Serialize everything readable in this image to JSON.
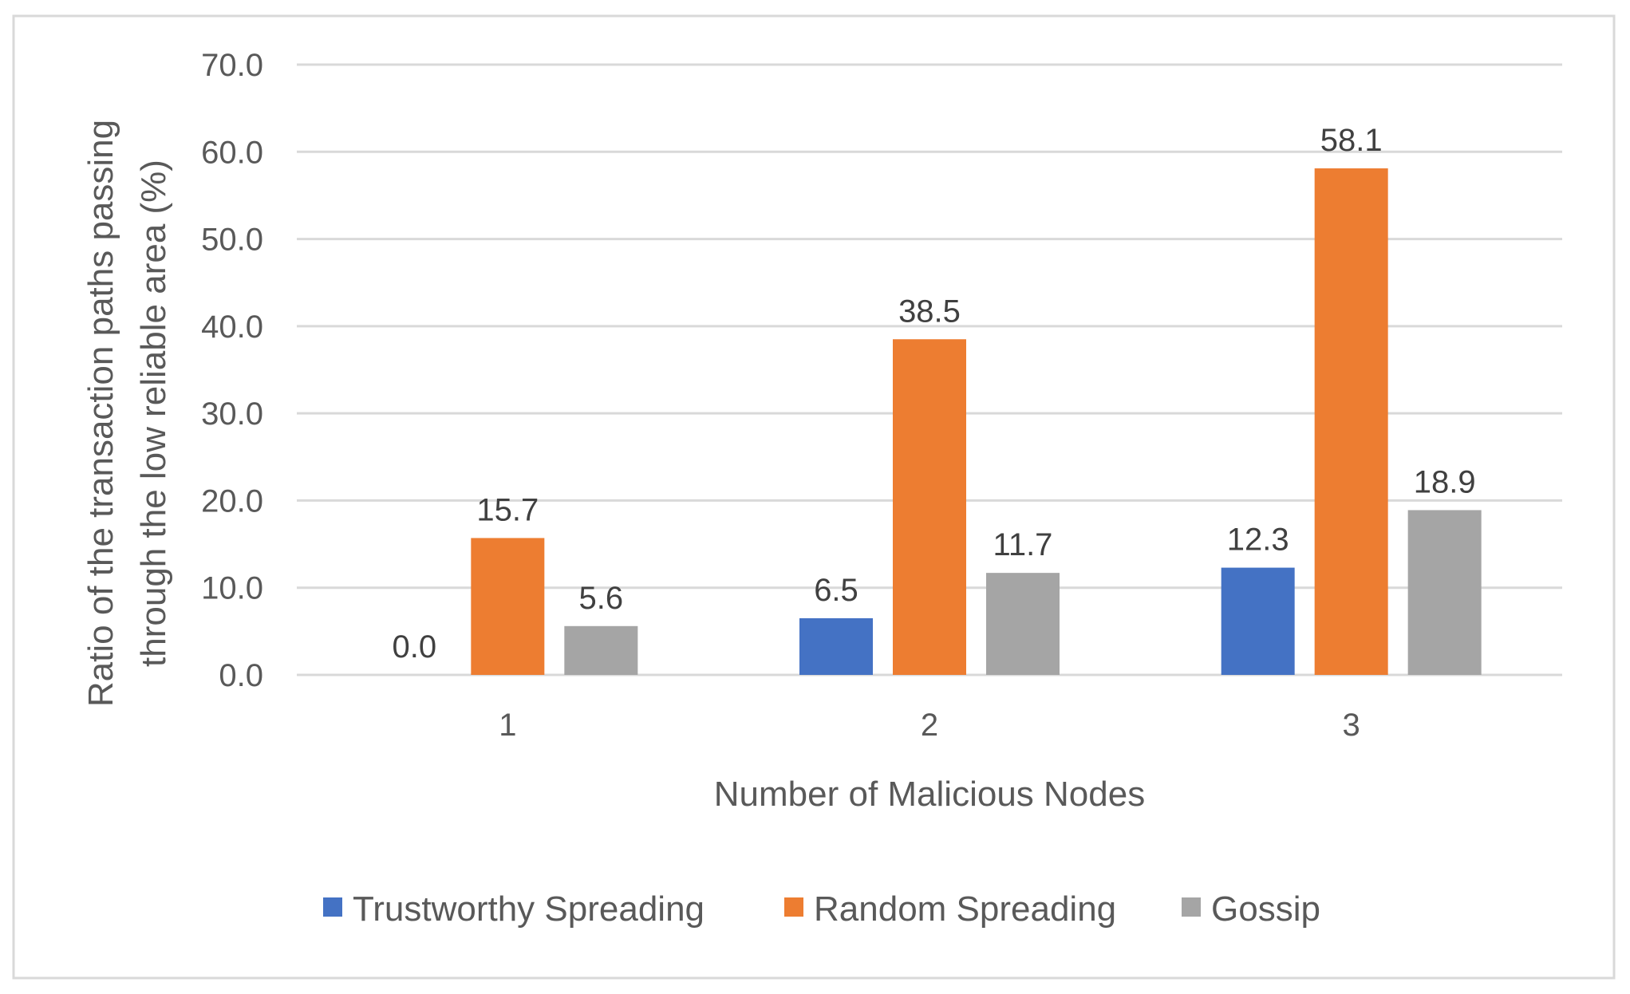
{
  "chart_data": {
    "type": "bar",
    "title": "",
    "xlabel": "Number of Malicious Nodes",
    "ylabel_line1": "Ratio of the transaction paths passing",
    "ylabel_line2": "through the low reliable area (%)",
    "categories": [
      "1",
      "2",
      "3"
    ],
    "ylim": [
      0,
      70
    ],
    "ytick_step": 10,
    "ytick_labels": [
      "0.0",
      "10.0",
      "20.0",
      "30.0",
      "40.0",
      "50.0",
      "60.0",
      "70.0"
    ],
    "grid": true,
    "legend_position": "bottom",
    "series": [
      {
        "name": "Trustworthy Spreading",
        "color": "#4472C4",
        "values": [
          0.0,
          6.5,
          12.3
        ],
        "labels": [
          "0.0",
          "6.5",
          "12.3"
        ]
      },
      {
        "name": "Random Spreading",
        "color": "#ED7D31",
        "values": [
          15.7,
          38.5,
          58.1
        ],
        "labels": [
          "15.7",
          "38.5",
          "58.1"
        ]
      },
      {
        "name": "Gossip",
        "color": "#A5A5A5",
        "values": [
          5.6,
          11.7,
          18.9
        ],
        "labels": [
          "5.6",
          "11.7",
          "18.9"
        ]
      }
    ]
  }
}
